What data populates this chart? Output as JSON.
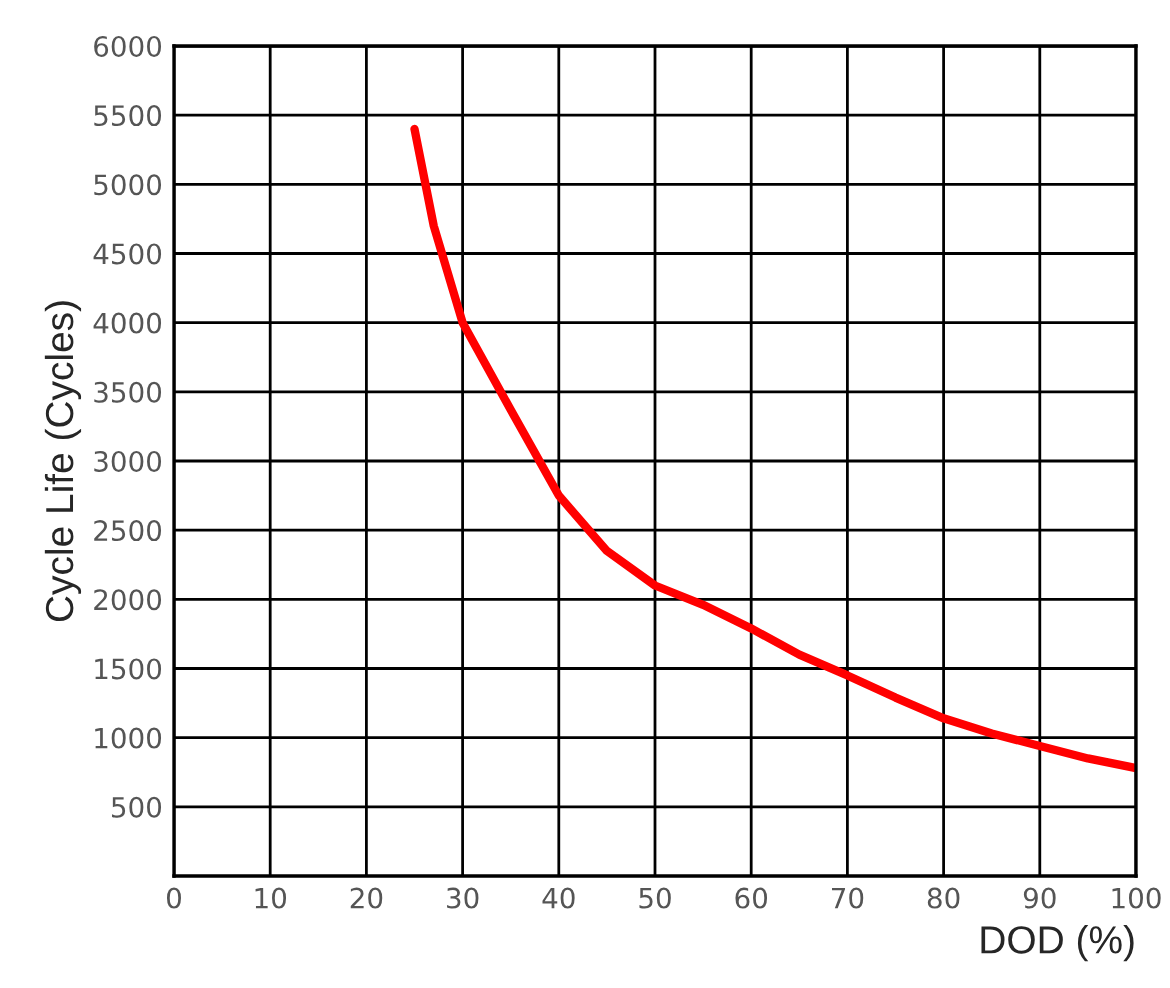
{
  "chart_data": {
    "type": "line",
    "xlabel": "DOD (%)",
    "ylabel": "Cycle Life (Cycles)",
    "series": [
      {
        "color": "#ff0000",
        "x": [
          25,
          27,
          30,
          35,
          40,
          45,
          50,
          55,
          60,
          65,
          70,
          75,
          80,
          85,
          90,
          95,
          100
        ],
        "values": [
          5400,
          4700,
          4000,
          3370,
          2750,
          2350,
          2100,
          1960,
          1790,
          1600,
          1450,
          1290,
          1140,
          1030,
          940,
          850,
          780
        ]
      }
    ],
    "xlim": [
      0,
      100
    ],
    "ylim": [
      0,
      6000
    ],
    "xticks": [
      0,
      10,
      20,
      30,
      40,
      50,
      60,
      70,
      80,
      90,
      100
    ],
    "yticks": [
      500,
      1000,
      1500,
      2000,
      2500,
      3000,
      3500,
      4000,
      4500,
      5000,
      5500,
      6000
    ],
    "grid": true,
    "marker": "none",
    "line_style": "solid"
  }
}
